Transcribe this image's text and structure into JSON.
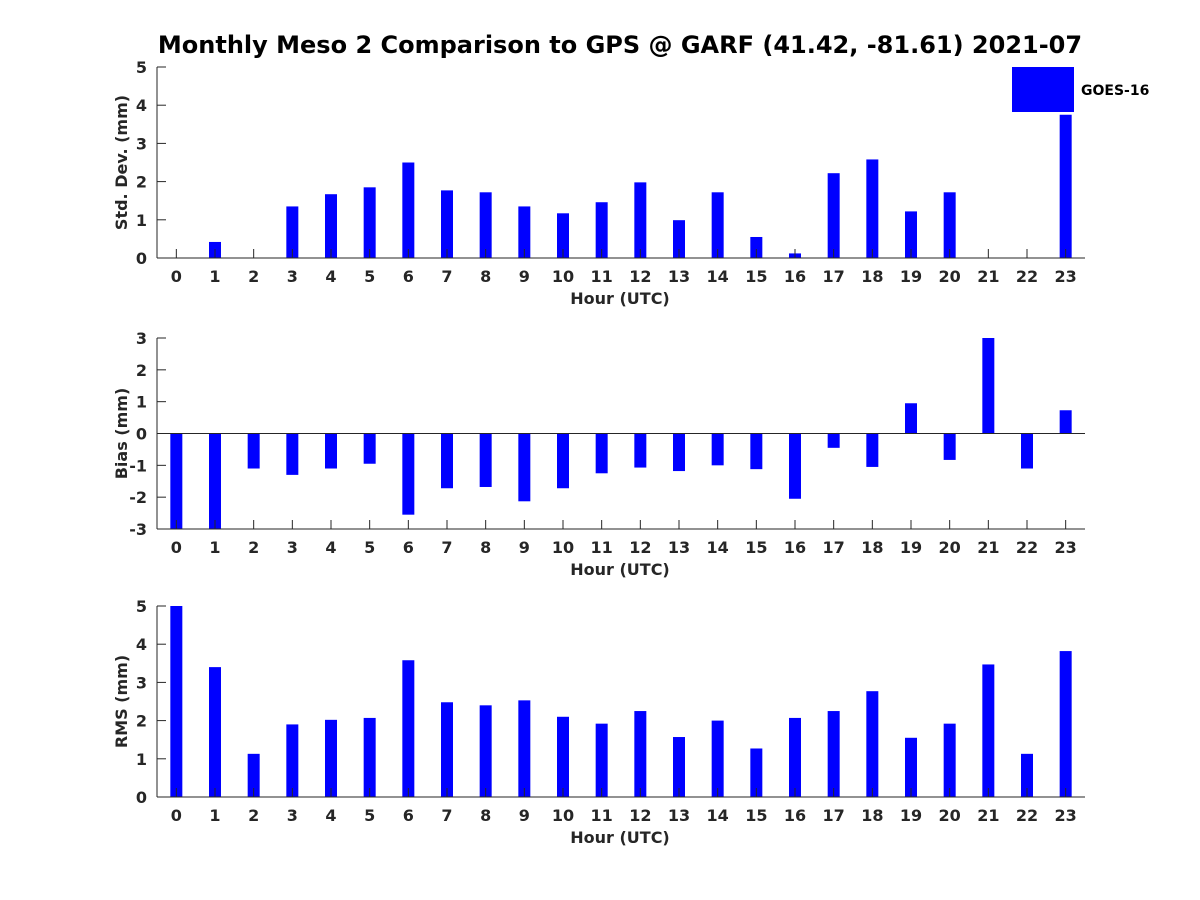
{
  "title": "Monthly Meso 2 Comparison to GPS @ GARF (41.42, -81.61) 2021-07",
  "legend": {
    "label": "GOES-16",
    "color": "#0000ff"
  },
  "chart_data": [
    {
      "type": "bar",
      "name": "std-dev",
      "categories": [
        "0",
        "1",
        "2",
        "3",
        "4",
        "5",
        "6",
        "7",
        "8",
        "9",
        "10",
        "11",
        "12",
        "13",
        "14",
        "15",
        "16",
        "17",
        "18",
        "19",
        "20",
        "21",
        "22",
        "23"
      ],
      "series": [
        {
          "name": "GOES-16",
          "values": [
            0,
            0.42,
            0,
            1.35,
            1.67,
            1.85,
            2.5,
            1.77,
            1.72,
            1.35,
            1.17,
            1.46,
            1.98,
            0.99,
            1.72,
            0.55,
            0.12,
            2.22,
            2.58,
            1.22,
            1.72,
            0,
            0,
            3.75
          ]
        }
      ],
      "xlabel": "Hour (UTC)",
      "ylabel": "Std. Dev. (mm)",
      "ylim": [
        0,
        5
      ],
      "yticks": [
        "0",
        "1",
        "2",
        "3",
        "4",
        "5"
      ],
      "grid": false,
      "legend_position": "top-right"
    },
    {
      "type": "bar",
      "name": "bias",
      "categories": [
        "0",
        "1",
        "2",
        "3",
        "4",
        "5",
        "6",
        "7",
        "8",
        "9",
        "10",
        "11",
        "12",
        "13",
        "14",
        "15",
        "16",
        "17",
        "18",
        "19",
        "20",
        "21",
        "22",
        "23"
      ],
      "series": [
        {
          "name": "GOES-16",
          "values": [
            -3,
            -3,
            -1.1,
            -1.3,
            -1.1,
            -0.95,
            -2.55,
            -1.72,
            -1.68,
            -2.13,
            -1.72,
            -1.25,
            -1.07,
            -1.18,
            -1.0,
            -1.12,
            -2.05,
            -0.45,
            -1.05,
            0.95,
            -0.83,
            3.0,
            -1.1,
            0.73
          ]
        }
      ],
      "xlabel": "Hour (UTC)",
      "ylabel": "Bias (mm)",
      "ylim": [
        -3,
        3
      ],
      "yticks": [
        "-3",
        "-2",
        "-1",
        "0",
        "1",
        "2",
        "3"
      ],
      "grid": false
    },
    {
      "type": "bar",
      "name": "rms",
      "categories": [
        "0",
        "1",
        "2",
        "3",
        "4",
        "5",
        "6",
        "7",
        "8",
        "9",
        "10",
        "11",
        "12",
        "13",
        "14",
        "15",
        "16",
        "17",
        "18",
        "19",
        "20",
        "21",
        "22",
        "23"
      ],
      "series": [
        {
          "name": "GOES-16",
          "values": [
            5.0,
            3.4,
            1.13,
            1.9,
            2.02,
            2.07,
            3.58,
            2.48,
            2.4,
            2.53,
            2.1,
            1.92,
            2.25,
            1.57,
            2.0,
            1.27,
            2.07,
            2.25,
            2.77,
            1.55,
            1.92,
            3.47,
            1.13,
            3.82
          ]
        }
      ],
      "xlabel": "Hour (UTC)",
      "ylabel": "RMS (mm)",
      "ylim": [
        0,
        5
      ],
      "yticks": [
        "0",
        "1",
        "2",
        "3",
        "4",
        "5"
      ],
      "grid": false
    }
  ]
}
